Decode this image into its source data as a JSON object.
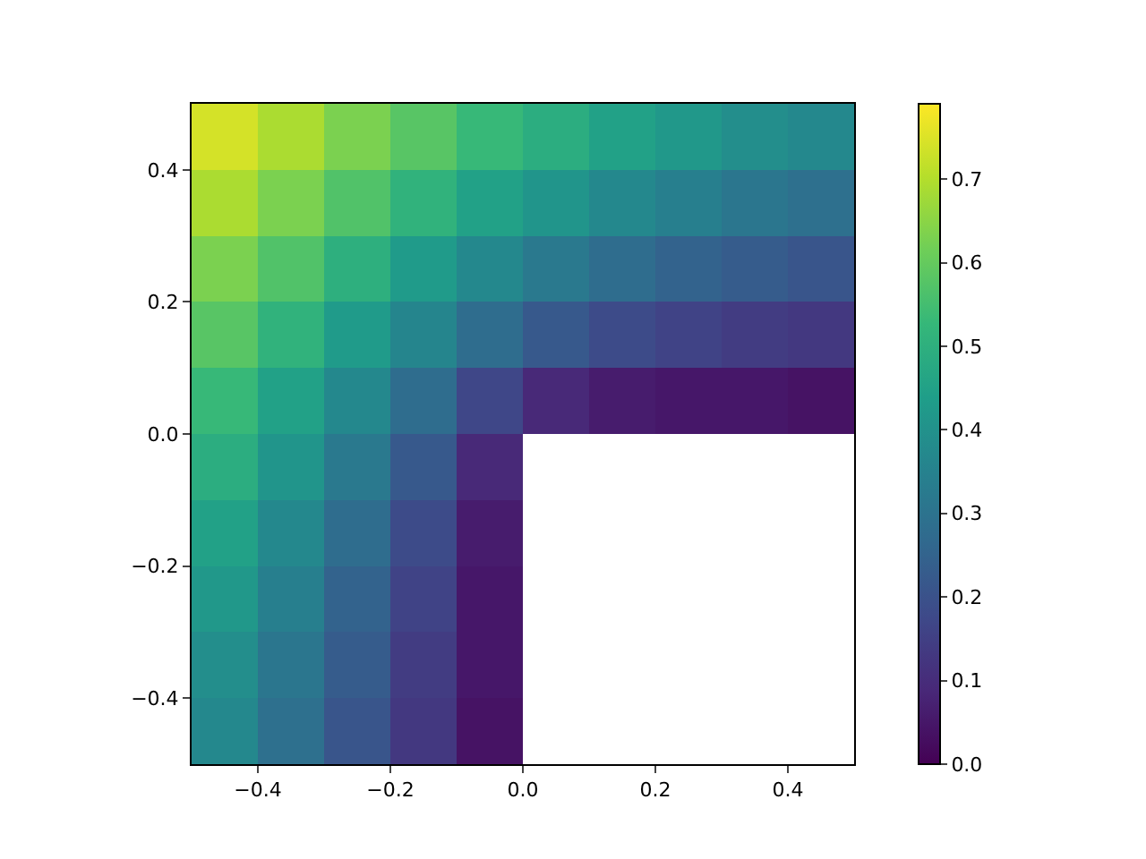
{
  "chart_data": {
    "type": "heatmap",
    "x": [
      -0.45,
      -0.35,
      -0.25,
      -0.15,
      -0.05,
      0.05,
      0.15,
      0.25,
      0.35,
      0.45
    ],
    "y": [
      0.45,
      0.35,
      0.25,
      0.15,
      0.05,
      -0.05,
      -0.15,
      -0.25,
      -0.35,
      -0.45
    ],
    "cells": [
      [
        0.74,
        0.69,
        0.63,
        0.58,
        0.53,
        0.49,
        0.45,
        0.42,
        0.39,
        0.37
      ],
      [
        0.69,
        0.63,
        0.57,
        0.51,
        0.45,
        0.41,
        0.37,
        0.34,
        0.31,
        0.29
      ],
      [
        0.63,
        0.57,
        0.5,
        0.43,
        0.37,
        0.32,
        0.28,
        0.25,
        0.23,
        0.21
      ],
      [
        0.58,
        0.51,
        0.43,
        0.36,
        0.28,
        0.22,
        0.18,
        0.16,
        0.14,
        0.13
      ],
      [
        0.53,
        0.45,
        0.37,
        0.28,
        0.17,
        0.09,
        0.06,
        0.05,
        0.05,
        0.04
      ],
      [
        0.49,
        0.41,
        0.32,
        0.22,
        0.09,
        null,
        null,
        null,
        null,
        null
      ],
      [
        0.45,
        0.37,
        0.28,
        0.18,
        0.06,
        null,
        null,
        null,
        null,
        null
      ],
      [
        0.42,
        0.34,
        0.25,
        0.16,
        0.05,
        null,
        null,
        null,
        null,
        null
      ],
      [
        0.39,
        0.31,
        0.23,
        0.14,
        0.05,
        null,
        null,
        null,
        null,
        null
      ],
      [
        0.37,
        0.29,
        0.21,
        0.13,
        0.04,
        null,
        null,
        null,
        null,
        null
      ]
    ],
    "xlim": [
      -0.5,
      0.5
    ],
    "xticks": [
      {
        "value": -0.4,
        "label": "−0.4"
      },
      {
        "value": -0.2,
        "label": "−0.2"
      },
      {
        "value": 0.0,
        "label": "0.0"
      },
      {
        "value": 0.2,
        "label": "0.2"
      },
      {
        "value": 0.4,
        "label": "0.4"
      }
    ],
    "ylim": [
      -0.5,
      0.5
    ],
    "yticks": [
      {
        "value": -0.4,
        "label": "−0.4"
      },
      {
        "value": -0.2,
        "label": "−0.2"
      },
      {
        "value": 0.0,
        "label": "0.0"
      },
      {
        "value": 0.2,
        "label": "0.2"
      },
      {
        "value": 0.4,
        "label": "0.4"
      }
    ],
    "clim": [
      0,
      0.79
    ],
    "cticks": [
      {
        "value": 0,
        "label": "0.0"
      },
      {
        "value": 0.1,
        "label": "0.1"
      },
      {
        "value": 0.2,
        "label": "0.2"
      },
      {
        "value": 0.3,
        "label": "0.3"
      },
      {
        "value": 0.4,
        "label": "0.4"
      },
      {
        "value": 0.5,
        "label": "0.5"
      },
      {
        "value": 0.6,
        "label": "0.6"
      },
      {
        "value": 0.7,
        "label": "0.7"
      }
    ]
  }
}
